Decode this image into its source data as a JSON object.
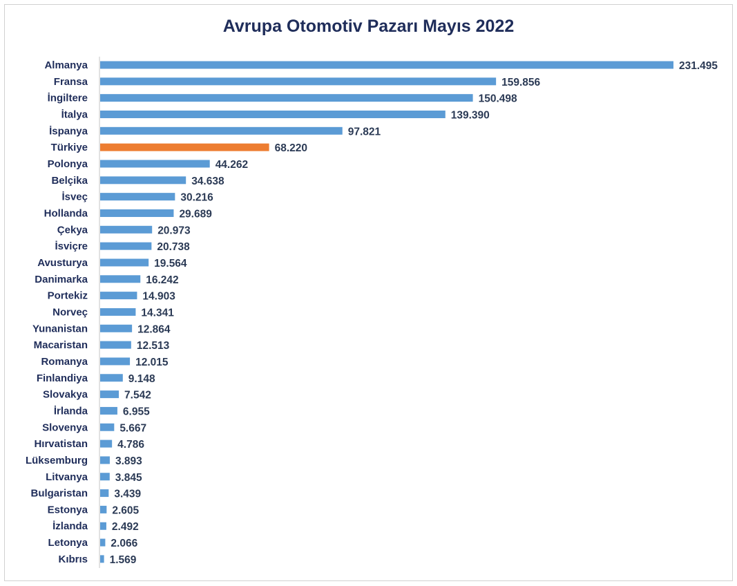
{
  "chart_data": {
    "type": "bar",
    "orientation": "horizontal",
    "title": "Avrupa Otomotiv Pazarı Mayıs 2022",
    "xlabel": "",
    "ylabel": "",
    "grid": false,
    "xlim": [
      0,
      231495
    ],
    "categories": [
      "Almanya",
      "Fransa",
      "İngiltere",
      "İtalya",
      "İspanya",
      "Türkiye",
      "Polonya",
      "Belçika",
      "İsveç",
      "Hollanda",
      "Çekya",
      "İsviçre",
      "Avusturya",
      "Danimarka",
      "Portekiz",
      "Norveç",
      "Yunanistan",
      "Macaristan",
      "Romanya",
      "Finlandiya",
      "Slovakya",
      "İrlanda",
      "Slovenya",
      "Hırvatistan",
      "Lüksemburg",
      "Litvanya",
      "Bulgaristan",
      "Estonya",
      "İzlanda",
      "Letonya",
      "Kıbrıs"
    ],
    "values": [
      231495,
      159856,
      150498,
      139390,
      97821,
      68220,
      44262,
      34638,
      30216,
      29689,
      20973,
      20738,
      19564,
      16242,
      14903,
      14341,
      12864,
      12513,
      12015,
      9148,
      7542,
      6955,
      5667,
      4786,
      3893,
      3845,
      3439,
      2605,
      2492,
      2066,
      1569
    ],
    "value_labels": [
      "231.495",
      "159.856",
      "150.498",
      "139.390",
      "97.821",
      "68.220",
      "44.262",
      "34.638",
      "30.216",
      "29.689",
      "20.973",
      "20.738",
      "19.564",
      "16.242",
      "14.903",
      "14.341",
      "12.864",
      "12.513",
      "12.015",
      "9.148",
      "7.542",
      "6.955",
      "5.667",
      "4.786",
      "3.893",
      "3.845",
      "3.439",
      "2.605",
      "2.492",
      "2.066",
      "1.569"
    ],
    "highlight": "Türkiye",
    "colors": {
      "bar": "#5b9bd5",
      "highlight_bar": "#ed7d31",
      "highlight_label": "#843c0c",
      "text": "#1f2d5a"
    }
  }
}
